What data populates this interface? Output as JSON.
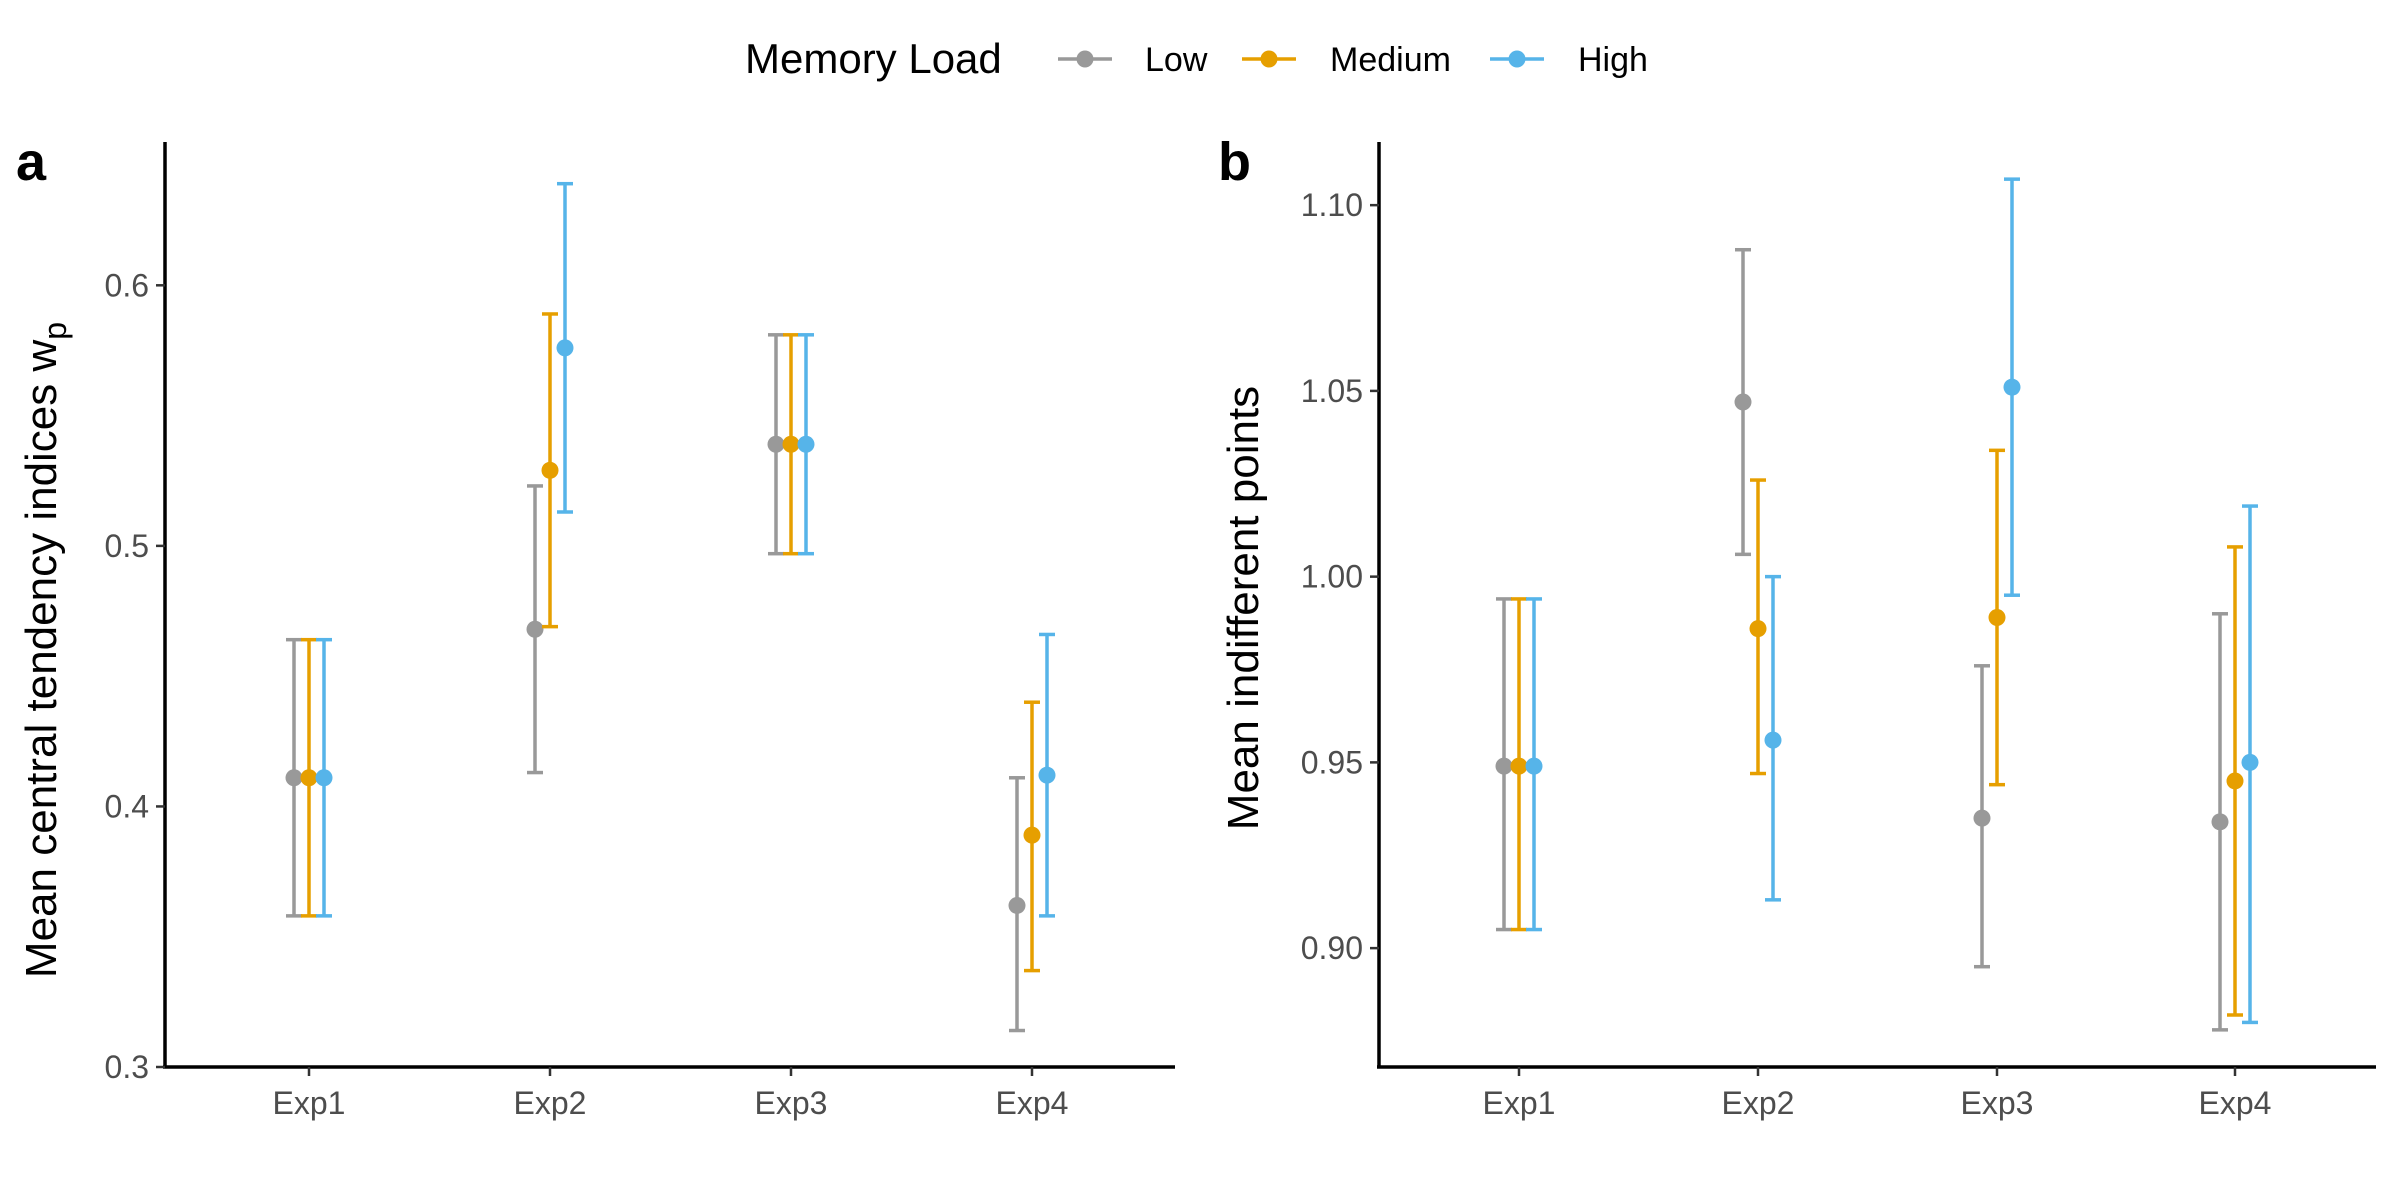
{
  "legend": {
    "title": "Memory Load",
    "items": [
      {
        "label": "Low",
        "color": "#999999"
      },
      {
        "label": "Medium",
        "color": "#E69F00"
      },
      {
        "label": "High",
        "color": "#56B4E9"
      }
    ]
  },
  "chart_data": [
    {
      "type": "scatter",
      "subtype": "point-with-errorbars",
      "panel_label": "a",
      "ylabel": "Mean central tendency indices w",
      "ylabel_subscript": "p",
      "xlabel": "",
      "categories": [
        "Exp1",
        "Exp2",
        "Exp3",
        "Exp4"
      ],
      "ylim": [
        0.3,
        0.655
      ],
      "yticks": [
        0.3,
        0.4,
        0.5,
        0.6
      ],
      "ytick_labels": [
        "0.3",
        "0.4",
        "0.5",
        "0.6"
      ],
      "grid": false,
      "legend_position": "top",
      "series": [
        {
          "name": "Low",
          "color": "#999999",
          "values": [
            0.411,
            0.468,
            0.539,
            0.362
          ],
          "lower": [
            0.358,
            0.413,
            0.497,
            0.314
          ],
          "upper": [
            0.464,
            0.523,
            0.581,
            0.411
          ]
        },
        {
          "name": "Medium",
          "color": "#E69F00",
          "values": [
            0.411,
            0.529,
            0.539,
            0.389
          ],
          "lower": [
            0.358,
            0.469,
            0.497,
            0.337
          ],
          "upper": [
            0.464,
            0.589,
            0.581,
            0.44
          ]
        },
        {
          "name": "High",
          "color": "#56B4E9",
          "values": [
            0.411,
            0.576,
            0.539,
            0.412
          ],
          "lower": [
            0.358,
            0.513,
            0.497,
            0.358
          ],
          "upper": [
            0.464,
            0.639,
            0.581,
            0.466
          ]
        }
      ]
    },
    {
      "type": "scatter",
      "subtype": "point-with-errorbars",
      "panel_label": "b",
      "ylabel": "Mean indifferent points",
      "xlabel": "",
      "categories": [
        "Exp1",
        "Exp2",
        "Exp3",
        "Exp4"
      ],
      "ylim": [
        0.868,
        1.117
      ],
      "yticks": [
        0.9,
        0.95,
        1.0,
        1.05,
        1.1
      ],
      "ytick_labels": [
        "0.90",
        "0.95",
        "1.00",
        "1.05",
        "1.10"
      ],
      "grid": false,
      "legend_position": "top",
      "series": [
        {
          "name": "Low",
          "color": "#999999",
          "values": [
            0.949,
            1.047,
            0.935,
            0.934
          ],
          "lower": [
            0.905,
            1.006,
            0.895,
            0.878
          ],
          "upper": [
            0.994,
            1.088,
            0.976,
            0.99
          ]
        },
        {
          "name": "Medium",
          "color": "#E69F00",
          "values": [
            0.949,
            0.986,
            0.989,
            0.945
          ],
          "lower": [
            0.905,
            0.947,
            0.944,
            0.882
          ],
          "upper": [
            0.994,
            1.026,
            1.034,
            1.008
          ]
        },
        {
          "name": "High",
          "color": "#56B4E9",
          "values": [
            0.949,
            0.956,
            1.051,
            0.95
          ],
          "lower": [
            0.905,
            0.913,
            0.995,
            0.88
          ],
          "upper": [
            0.994,
            1.0,
            1.107,
            1.019
          ]
        }
      ]
    }
  ]
}
